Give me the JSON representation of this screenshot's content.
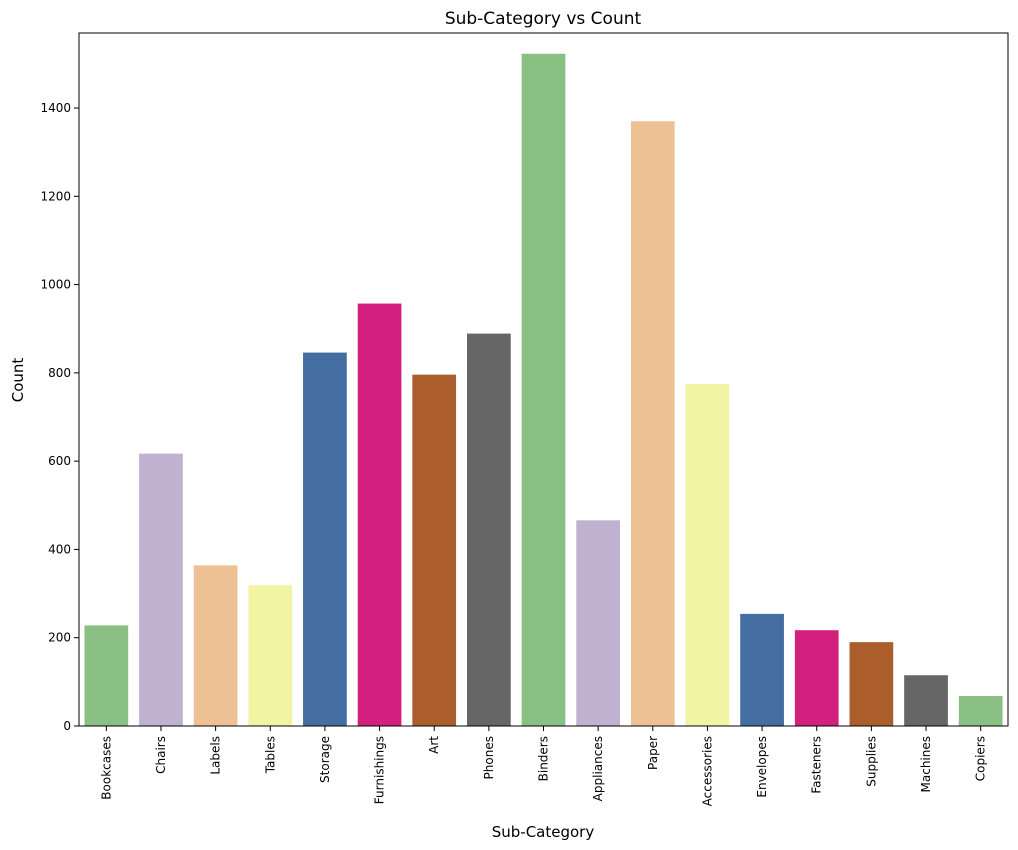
{
  "chart_data": {
    "type": "bar",
    "title": "Sub-Category vs Count",
    "xlabel": "Sub-Category",
    "ylabel": "Count",
    "ylim": [
      0,
      1570
    ],
    "yticks": [
      0,
      200,
      400,
      600,
      800,
      1000,
      1200,
      1400
    ],
    "grid": false,
    "categories": [
      "Bookcases",
      "Chairs",
      "Labels",
      "Tables",
      "Storage",
      "Furnishings",
      "Art",
      "Phones",
      "Binders",
      "Appliances",
      "Paper",
      "Accessories",
      "Envelopes",
      "Fasteners",
      "Supplies",
      "Machines",
      "Copiers"
    ],
    "values": [
      228,
      617,
      364,
      319,
      846,
      957,
      796,
      889,
      1523,
      466,
      1370,
      775,
      254,
      217,
      190,
      115,
      68
    ],
    "colors": [
      "#8bc085",
      "#c1b1d0",
      "#eec195",
      "#f3f3a4",
      "#446ea2",
      "#d3207f",
      "#ac5d2c",
      "#666666",
      "#8bc085",
      "#c1b1d0",
      "#eec195",
      "#f3f3a4",
      "#446ea2",
      "#d3207f",
      "#ac5d2c",
      "#666666",
      "#8bc085"
    ]
  }
}
